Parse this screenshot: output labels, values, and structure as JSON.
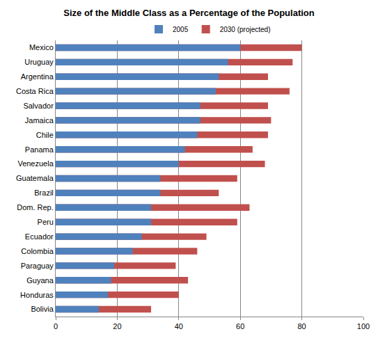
{
  "chart_data": {
    "type": "bar",
    "title": "Size of the Middle Class as a Percentage of the Population",
    "orientation": "horizontal",
    "stacked": false,
    "grid": true,
    "legend": "top",
    "categories": [
      "Mexico",
      "Uruguay",
      "Argentina",
      "Costa Rica",
      "Salvador",
      "Jamaica",
      "Chile",
      "Panama",
      "Venezuela",
      "Guatemala",
      "Brazil",
      "Dom. Rep.",
      "Peru",
      "Ecuador",
      "Colombia",
      "Paraguay",
      "Guyana",
      "Honduras",
      "Bolivia"
    ],
    "series": [
      {
        "name": "2005",
        "color": "#4F81BD",
        "values": [
          60,
          56,
          53,
          52,
          47,
          47,
          46,
          42,
          40,
          34,
          34,
          31,
          31,
          28,
          25,
          19,
          18,
          17,
          14
        ]
      },
      {
        "name": "2030 (projected)",
        "color": "#C0504D",
        "values": [
          80,
          77,
          69,
          76,
          69,
          70,
          69,
          64,
          68,
          59,
          53,
          63,
          59,
          49,
          46,
          39,
          43,
          40,
          31
        ]
      }
    ],
    "xlim": [
      0,
      100
    ],
    "xticks": [
      0,
      20,
      40,
      60,
      80,
      100
    ]
  }
}
